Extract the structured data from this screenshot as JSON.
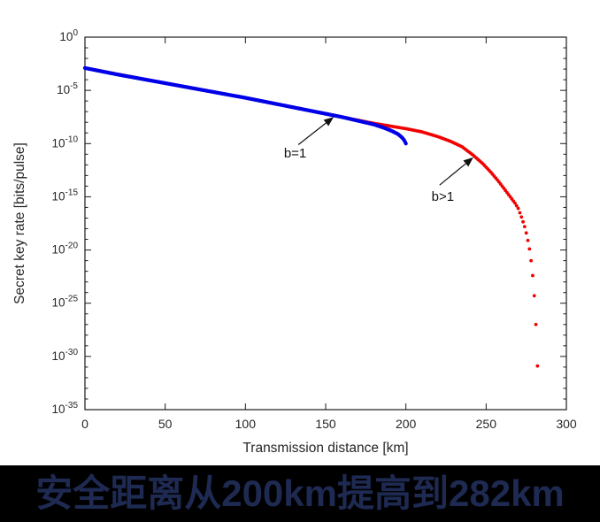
{
  "caption": {
    "text": "安全距离从200km提高到282km",
    "text_color": "#1e2a52",
    "background_color": "#000000"
  },
  "chart_data": {
    "type": "scatter",
    "title": "",
    "xlabel": "Transmission distance [km]",
    "ylabel": "Secret key rate [bits/pulse]",
    "y_scale": "log",
    "xlim": [
      0,
      300
    ],
    "ylim_log10": [
      -35,
      0
    ],
    "x_ticks": [
      0,
      50,
      100,
      150,
      200,
      250,
      300
    ],
    "y_tick_exponents": [
      0,
      -5,
      -10,
      -15,
      -20,
      -25,
      -30,
      -35
    ],
    "grid": false,
    "axis_color": "#1a1a1a",
    "label_color": "#262626",
    "series": [
      {
        "name": "b=1",
        "color": "#0000e8",
        "marker": "dot",
        "sample_step_km": 0.5,
        "points_log10": [
          [
            0,
            -2.9
          ],
          [
            20,
            -3.5
          ],
          [
            40,
            -4.05
          ],
          [
            60,
            -4.6
          ],
          [
            80,
            -5.15
          ],
          [
            100,
            -5.7
          ],
          [
            120,
            -6.3
          ],
          [
            140,
            -6.9
          ],
          [
            150,
            -7.2
          ],
          [
            160,
            -7.5
          ],
          [
            170,
            -7.85
          ],
          [
            180,
            -8.2
          ],
          [
            186,
            -8.5
          ],
          [
            191,
            -8.8
          ],
          [
            195,
            -9.1
          ],
          [
            197,
            -9.35
          ],
          [
            198,
            -9.5
          ],
          [
            199,
            -9.7
          ],
          [
            200,
            -10.0
          ]
        ]
      },
      {
        "name": "b>1",
        "color": "#f20000",
        "marker": "dot",
        "sample_step_km": 1,
        "points_log10": [
          [
            0,
            -2.9
          ],
          [
            50,
            -4.32
          ],
          [
            100,
            -5.7
          ],
          [
            150,
            -7.2
          ],
          [
            180,
            -8.1
          ],
          [
            190,
            -8.35
          ],
          [
            200,
            -8.6
          ],
          [
            210,
            -8.9
          ],
          [
            220,
            -9.35
          ],
          [
            228,
            -9.8
          ],
          [
            235,
            -10.3
          ],
          [
            242,
            -11.1
          ],
          [
            248,
            -11.9
          ],
          [
            253,
            -12.7
          ],
          [
            258,
            -13.6
          ],
          [
            262,
            -14.4
          ],
          [
            265,
            -15.0
          ],
          [
            268,
            -15.6
          ],
          [
            270,
            -16.1
          ],
          [
            272,
            -16.9
          ],
          [
            274,
            -17.8
          ],
          [
            275.5,
            -18.7
          ],
          [
            277,
            -19.9
          ],
          [
            278,
            -21.0
          ],
          [
            279,
            -22.4
          ],
          [
            280,
            -24.3
          ],
          [
            281,
            -27.0
          ],
          [
            282,
            -30.9
          ]
        ]
      }
    ],
    "annotations": [
      {
        "text": "b=1",
        "text_x_km": 131,
        "text_y_log10": -11.3,
        "arrow_from": [
          133,
          -10.1
        ],
        "arrow_to": [
          155,
          -7.5
        ]
      },
      {
        "text": "b>1",
        "text_x_km": 223,
        "text_y_log10": -15.4,
        "arrow_from": [
          221,
          -13.9
        ],
        "arrow_to": [
          242,
          -11.3
        ]
      }
    ]
  }
}
